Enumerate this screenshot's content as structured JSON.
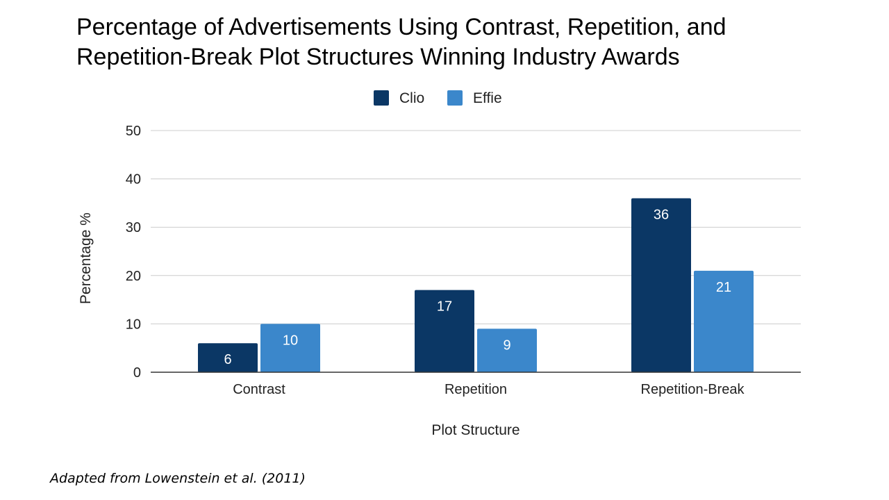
{
  "title_lines": [
    "Percentage of Advertisements Using Contrast, Repetition, and",
    "Repetition-Break Plot Structures Winning Industry Awards"
  ],
  "citation": "Adapted from Lowenstein et al. (2011)",
  "chart_data": {
    "type": "bar",
    "title": "Percentage of Advertisements Using Contrast, Repetition, and Repetition-Break Plot Structures Winning Industry Awards",
    "categories": [
      "Contrast",
      "Repetition",
      "Repetition-Break"
    ],
    "series": [
      {
        "name": "Clio",
        "values": [
          6,
          17,
          36
        ],
        "color": "#0b3765"
      },
      {
        "name": "Effie",
        "values": [
          10,
          9,
          21
        ],
        "color": "#3b87cb"
      }
    ],
    "xlabel": "Plot Structure",
    "ylabel": "Percentage %",
    "ylim": [
      0,
      50
    ],
    "yticks": [
      0,
      10,
      20,
      30,
      40,
      50
    ],
    "grid": true,
    "legend": "top-center",
    "data_labels": true
  }
}
